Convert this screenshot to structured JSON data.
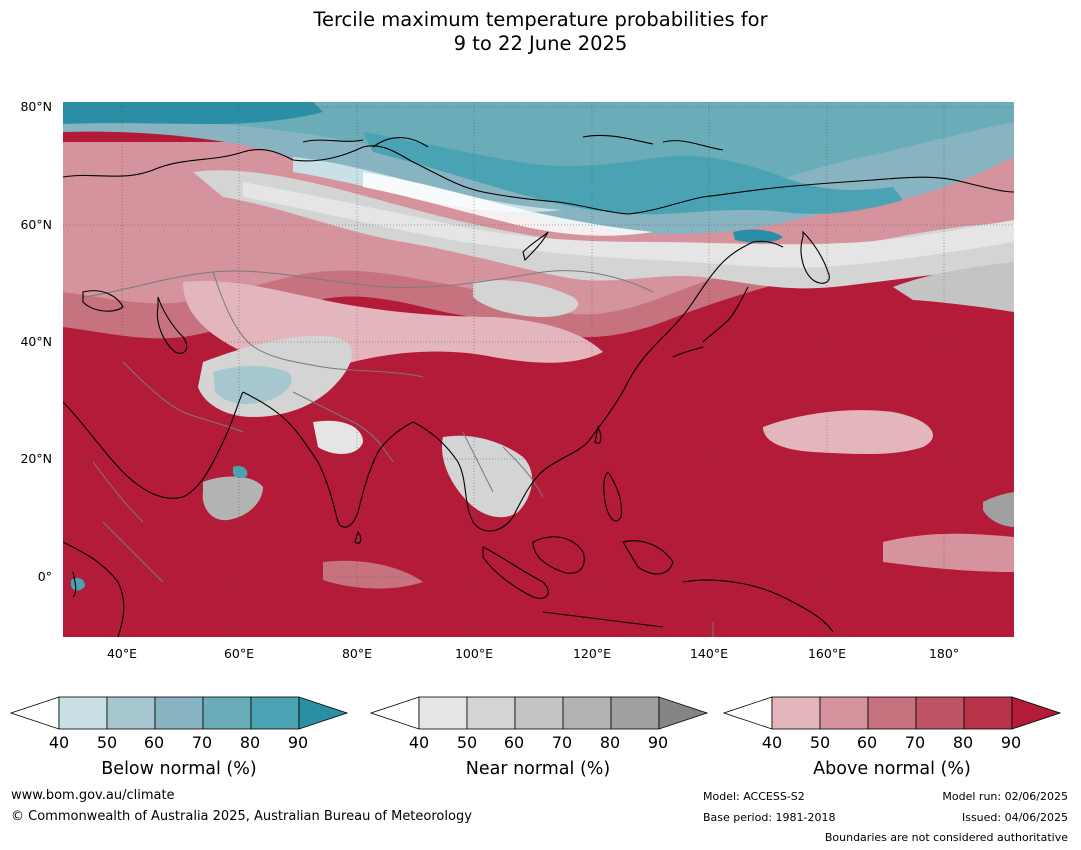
{
  "title": "Tercile maximum temperature probabilities for\n9 to 22 June 2025",
  "map": {
    "lat_labels": [
      "80°N",
      "60°N",
      "40°N",
      "20°N",
      "0°"
    ],
    "lon_labels": [
      "40°E",
      "60°E",
      "80°E",
      "100°E",
      "120°E",
      "140°E",
      "160°E",
      "180°"
    ],
    "extent": {
      "lon_min": 30,
      "lon_max": 192,
      "lat_min": -10,
      "lat_max": 81
    }
  },
  "legends": [
    {
      "name": "below",
      "title": "Below normal (%)",
      "ticks": [
        "40",
        "50",
        "60",
        "70",
        "80",
        "90"
      ],
      "colors": [
        "#ffffff",
        "#c8e0e6",
        "#a6c7cf",
        "#87b4c0",
        "#6aacb8",
        "#4aa3b3",
        "#2a8ea4"
      ]
    },
    {
      "name": "near",
      "title": "Near normal (%)",
      "ticks": [
        "40",
        "50",
        "60",
        "70",
        "80",
        "90"
      ],
      "colors": [
        "#ffffff",
        "#e5e5e5",
        "#d4d4d4",
        "#c4c4c4",
        "#b3b3b3",
        "#a0a0a0",
        "#858585"
      ]
    },
    {
      "name": "above",
      "title": "Above normal (%)",
      "ticks": [
        "40",
        "50",
        "60",
        "70",
        "80",
        "90"
      ],
      "colors": [
        "#ffffff",
        "#e2b6bc",
        "#d4939d",
        "#c7727f",
        "#bf5466",
        "#b83348",
        "#b41b39"
      ]
    }
  ],
  "footer": {
    "website": "www.bom.gov.au/climate",
    "copyright": "© Commonwealth of Australia 2025, Australian Bureau of Meteorology",
    "model": "Model: ACCESS-S2",
    "model_run": "Model run: 02/06/2025",
    "base_period": "Base period: 1981-2018",
    "issued": "Issued: 04/06/2025",
    "boundaries": "Boundaries are not considered authoritative"
  }
}
